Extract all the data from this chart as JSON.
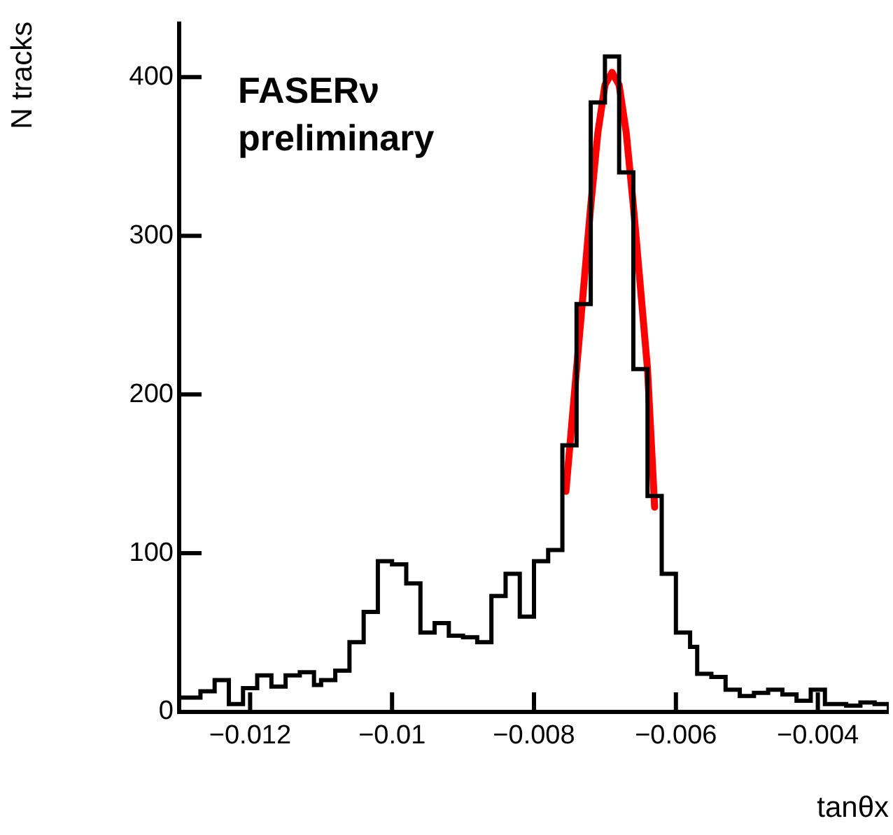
{
  "chart_data": {
    "type": "histogram",
    "xlabel": "tanθx",
    "ylabel": "N tracks",
    "annotations": [
      "FASERν",
      "preliminary"
    ],
    "bins": [
      -0.013,
      -0.0129,
      -0.0128,
      -0.0127,
      -0.0126,
      -0.0125,
      -0.0124,
      -0.0123,
      -0.0122,
      -0.0121,
      -0.012,
      -0.0119,
      -0.0118,
      -0.0117,
      -0.0116,
      -0.0115,
      -0.0114,
      -0.0113,
      -0.0112,
      -0.0111,
      -0.011,
      -0.0109,
      -0.0108,
      -0.0107,
      -0.0106,
      -0.0105,
      -0.0104,
      -0.0103,
      -0.0102,
      -0.0101,
      -0.01,
      -0.0099,
      -0.0098,
      -0.0097,
      -0.0096,
      -0.0095,
      -0.0094,
      -0.0093,
      -0.0092,
      -0.0091,
      -0.009,
      -0.0089,
      -0.0088,
      -0.0087,
      -0.0086,
      -0.0085,
      -0.0084,
      -0.0083,
      -0.0082,
      -0.0081,
      -0.008,
      -0.0079,
      -0.0078,
      -0.0077,
      -0.0076,
      -0.0075,
      -0.0074,
      -0.0073,
      -0.0072,
      -0.0071,
      -0.007,
      -0.0069,
      -0.0068,
      -0.0067,
      -0.0066,
      -0.0065,
      -0.0064,
      -0.0063,
      -0.0062,
      -0.0061,
      -0.006,
      -0.0059,
      -0.0058,
      -0.0057,
      -0.0056,
      -0.0055,
      -0.0054,
      -0.0053,
      -0.0052,
      -0.0051,
      -0.005,
      -0.0049,
      -0.0048,
      -0.0047,
      -0.0046,
      -0.0045,
      -0.0044,
      -0.0043,
      -0.0042,
      -0.0041,
      -0.004,
      -0.0039,
      -0.0038,
      -0.0037,
      -0.0036,
      -0.0035,
      -0.0034,
      -0.0033,
      -0.0032,
      -0.0031,
      -0.003
    ],
    "values": [
      9,
      9,
      9,
      13,
      13,
      20,
      20,
      5,
      5,
      15,
      15,
      23,
      23,
      16,
      16,
      23,
      23,
      25,
      25,
      17,
      20,
      20,
      26,
      26,
      44,
      44,
      63,
      63,
      95,
      95,
      93,
      93,
      81,
      81,
      50,
      50,
      56,
      56,
      48,
      48,
      47,
      47,
      44,
      44,
      73,
      73,
      87,
      87,
      60,
      60,
      95,
      95,
      102,
      102,
      168,
      168,
      257,
      257,
      384,
      384,
      413,
      413,
      340,
      340,
      216,
      216,
      136,
      136,
      87,
      87,
      50,
      50,
      41,
      24,
      24,
      22,
      22,
      14,
      14,
      10,
      10,
      12,
      12,
      14,
      14,
      11,
      11,
      7,
      7,
      14,
      14,
      5,
      5,
      5,
      4,
      4,
      6,
      6,
      5,
      5
    ],
    "color": "#000000",
    "series": [
      {
        "type": "line",
        "color": "#ff0000",
        "x": [
          -0.00755,
          -0.0074,
          -0.0072,
          -0.0071,
          -0.007,
          -0.0069,
          -0.0068,
          -0.0067,
          -0.0066,
          -0.0064,
          -0.0063
        ],
        "values": [
          139,
          216,
          319,
          365,
          395,
          403,
          395,
          365,
          319,
          216,
          129
        ]
      }
    ],
    "xlim": [
      -0.013,
      -0.003
    ],
    "ylim": [
      0,
      435
    ],
    "xticks": [
      {
        "value": -0.012,
        "label": "−0.012"
      },
      {
        "value": -0.01,
        "label": "−0.01"
      },
      {
        "value": -0.008,
        "label": "−0.008"
      },
      {
        "value": -0.006,
        "label": "−0.006"
      },
      {
        "value": -0.004,
        "label": "−0.004"
      }
    ],
    "yticks": [
      0,
      100,
      200,
      300,
      400
    ],
    "grid": false,
    "legend": false,
    "marker": "none",
    "line_style": "solid"
  }
}
